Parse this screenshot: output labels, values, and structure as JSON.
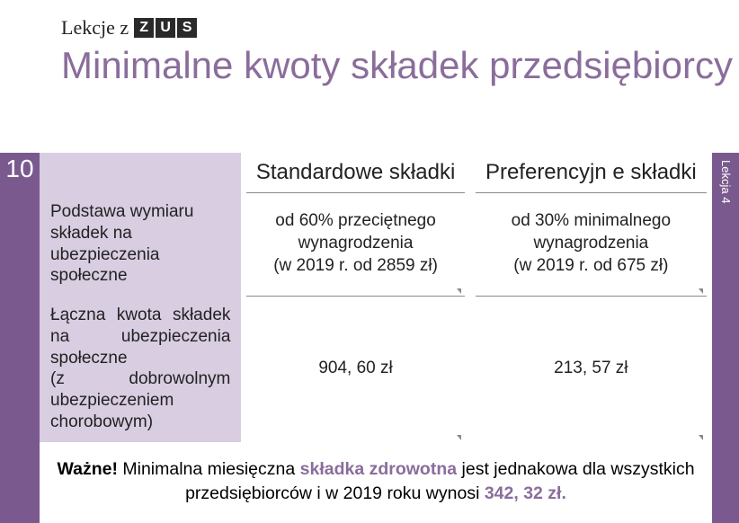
{
  "header": {
    "prefix": "Lekcje z",
    "zus": [
      "Z",
      "U",
      "S"
    ]
  },
  "title": "Minimalne kwoty składek przedsiębiorcy",
  "slideNumber": "10",
  "sideLabel": "Lekcja 4",
  "table": {
    "headers": {
      "blank": "",
      "standard": "Standardowe składki",
      "preferential": "Preferencyjn e składki"
    },
    "rows": [
      {
        "label": "Podstawa wymiaru składek na ubezpieczenia społeczne",
        "standard": "od 60% przeciętnego wynagrodzenia\n(w 2019 r. od 2859 zł)",
        "preferential": "od 30% minimalnego wynagrodzenia\n(w 2019 r. od 675 zł)"
      },
      {
        "label": "Łączna kwota składek na ubezpieczenia społeczne\n(z dobrowolnym ubezpieczeniem chorobowym)",
        "standard": "904, 60 zł",
        "preferential": "213, 57 zł"
      }
    ]
  },
  "important": {
    "bold": "Ważne!",
    "pre": " Minimalna miesięczna ",
    "kw1": "składka zdrowotna",
    "mid": " jest jednakowa dla wszystkich przedsiębiorców i w 2019 roku wynosi ",
    "kw2": "342, 32 zł."
  },
  "colors": {
    "accent": "#8a6d9b",
    "sidebar": "#7a5a8e",
    "hdrBg": "#d8cde1"
  }
}
